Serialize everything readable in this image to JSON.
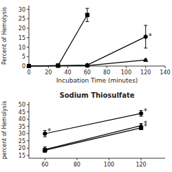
{
  "chart_data": [
    {
      "type": "line",
      "xlabel": "Incubation Time (minutes)",
      "ylabel": "Percent of Hemolysis",
      "xlim": [
        0,
        140
      ],
      "ylim": [
        0,
        32
      ],
      "xticks": [
        0,
        20,
        40,
        60,
        80,
        100,
        120,
        140
      ],
      "yticks": [
        0,
        5,
        10,
        15,
        20,
        25,
        30
      ],
      "series": [
        {
          "marker": "square",
          "color": "black",
          "x": [
            0,
            30,
            60
          ],
          "values": [
            0,
            0.3,
            27
          ],
          "errors": [
            0,
            0.1,
            3.5
          ]
        },
        {
          "marker": "circle",
          "color": "black",
          "x": [
            0,
            30,
            60,
            120
          ],
          "values": [
            0,
            0.2,
            0.5,
            15.5
          ],
          "errors": [
            0,
            0.1,
            0.2,
            6.0
          ]
        },
        {
          "marker": "triangle",
          "color": "black",
          "x": [
            0,
            30,
            60,
            120
          ],
          "values": [
            0,
            0.1,
            0.2,
            3.2
          ],
          "errors": [
            0,
            0.05,
            0.1,
            0.4
          ]
        }
      ],
      "annotations": [
        {
          "text": "*",
          "x": 120,
          "y": 16.5
        }
      ]
    },
    {
      "type": "line",
      "title": "Sodium Thiosulfate",
      "ylabel": "percent of Hemolysis",
      "xlim": [
        50,
        135
      ],
      "ylim": [
        13,
        52
      ],
      "xticks": [
        60,
        80,
        100,
        120
      ],
      "yticks": [
        15,
        20,
        25,
        30,
        35,
        40,
        45,
        50
      ],
      "series": [
        {
          "marker": "circle",
          "color": "black",
          "x": [
            60,
            120
          ],
          "values": [
            30.0,
            44.0
          ],
          "errors": [
            2.2,
            2.0
          ]
        },
        {
          "marker": "triangle",
          "color": "black",
          "x": [
            60,
            120
          ],
          "values": [
            19.0,
            35.5
          ],
          "errors": [
            1.8,
            1.5
          ]
        },
        {
          "marker": "square",
          "color": "black",
          "x": [
            60,
            120
          ],
          "values": [
            18.5,
            34.0
          ],
          "errors": [
            1.2,
            1.2
          ]
        }
      ],
      "annotations": [
        {
          "text": "*",
          "x": 60,
          "y": 32.5
        },
        {
          "text": "*",
          "x": 120,
          "y": 46.5
        },
        {
          "text": "*",
          "x": 120,
          "y": 37.5
        },
        {
          "text": "*",
          "x": 120,
          "y": 35.8
        }
      ]
    }
  ]
}
